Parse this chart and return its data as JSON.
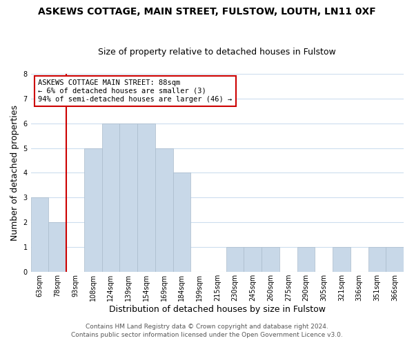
{
  "title": "ASKEWS COTTAGE, MAIN STREET, FULSTOW, LOUTH, LN11 0XF",
  "subtitle": "Size of property relative to detached houses in Fulstow",
  "xlabel": "Distribution of detached houses by size in Fulstow",
  "ylabel": "Number of detached properties",
  "bar_labels": [
    "63sqm",
    "78sqm",
    "93sqm",
    "108sqm",
    "124sqm",
    "139sqm",
    "154sqm",
    "169sqm",
    "184sqm",
    "199sqm",
    "215sqm",
    "230sqm",
    "245sqm",
    "260sqm",
    "275sqm",
    "290sqm",
    "305sqm",
    "321sqm",
    "336sqm",
    "351sqm",
    "366sqm"
  ],
  "bar_values": [
    3,
    2,
    0,
    5,
    6,
    6,
    6,
    5,
    4,
    0,
    0,
    1,
    1,
    1,
    0,
    1,
    0,
    1,
    0,
    1,
    1
  ],
  "bar_color": "#c8d8e8",
  "bar_edge_color": "#aabbcc",
  "property_line_index": 2,
  "annotation_text": "ASKEWS COTTAGE MAIN STREET: 88sqm\n← 6% of detached houses are smaller (3)\n94% of semi-detached houses are larger (46) →",
  "annotation_box_color": "#ffffff",
  "annotation_box_edge": "#cc0000",
  "property_line_color": "#cc0000",
  "ylim": [
    0,
    8
  ],
  "yticks": [
    0,
    1,
    2,
    3,
    4,
    5,
    6,
    7,
    8
  ],
  "footer1": "Contains HM Land Registry data © Crown copyright and database right 2024.",
  "footer2": "Contains public sector information licensed under the Open Government Licence v3.0.",
  "bg_color": "#ffffff",
  "plot_bg_color": "#ffffff",
  "grid_color": "#ccddee",
  "title_fontsize": 10,
  "subtitle_fontsize": 9,
  "axis_label_fontsize": 9,
  "tick_fontsize": 7,
  "annotation_fontsize": 7.5,
  "footer_fontsize": 6.5
}
